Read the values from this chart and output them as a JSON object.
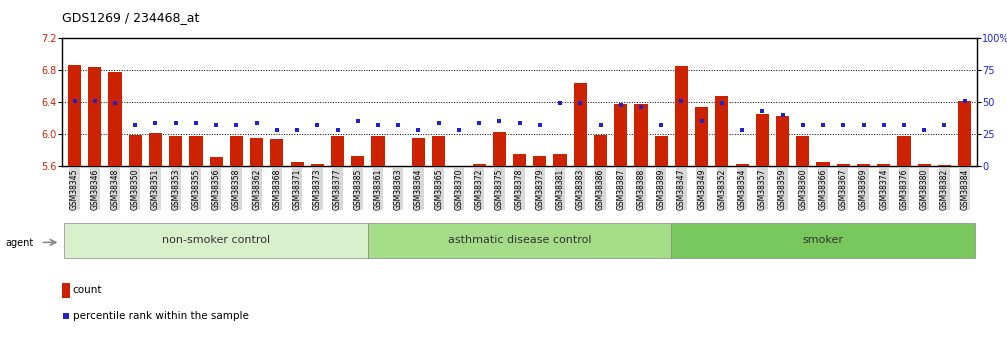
{
  "title": "GDS1269 / 234468_at",
  "ylim_left": [
    5.6,
    7.2
  ],
  "ylim_right": [
    0,
    100
  ],
  "yticks_left": [
    5.6,
    6.0,
    6.4,
    6.8,
    7.2
  ],
  "yticks_right": [
    0,
    25,
    50,
    75,
    100
  ],
  "ytick_labels_right": [
    "0",
    "25",
    "50",
    "75",
    "100%"
  ],
  "hlines": [
    6.0,
    6.4,
    6.8
  ],
  "samples": [
    "GSM38345",
    "GSM38346",
    "GSM38348",
    "GSM38350",
    "GSM38351",
    "GSM38353",
    "GSM38355",
    "GSM38356",
    "GSM38358",
    "GSM38362",
    "GSM38368",
    "GSM38371",
    "GSM38373",
    "GSM38377",
    "GSM38385",
    "GSM38361",
    "GSM38363",
    "GSM38364",
    "GSM38365",
    "GSM38370",
    "GSM38372",
    "GSM38375",
    "GSM38378",
    "GSM38379",
    "GSM38381",
    "GSM38383",
    "GSM38386",
    "GSM38387",
    "GSM38388",
    "GSM38389",
    "GSM38347",
    "GSM38349",
    "GSM38352",
    "GSM38354",
    "GSM38357",
    "GSM38359",
    "GSM38360",
    "GSM38366",
    "GSM38367",
    "GSM38369",
    "GSM38374",
    "GSM38376",
    "GSM38380",
    "GSM38382",
    "GSM38384"
  ],
  "red_values": [
    6.86,
    6.84,
    6.77,
    5.98,
    6.01,
    5.97,
    5.97,
    5.71,
    5.97,
    5.94,
    5.93,
    5.65,
    5.62,
    5.97,
    5.72,
    5.97,
    5.57,
    5.94,
    5.97,
    5.54,
    5.62,
    6.02,
    5.75,
    5.72,
    5.74,
    6.63,
    5.98,
    6.37,
    6.37,
    5.97,
    6.85,
    6.33,
    6.47,
    5.62,
    6.25,
    6.22,
    5.97,
    5.65,
    5.62,
    5.62,
    5.62,
    5.97,
    5.62,
    5.61,
    6.41
  ],
  "blue_values": [
    6.41,
    6.41,
    6.38,
    6.11,
    6.13,
    6.13,
    6.13,
    6.11,
    6.11,
    6.13,
    6.05,
    6.05,
    6.11,
    6.05,
    6.16,
    6.11,
    6.11,
    6.05,
    6.13,
    6.05,
    6.13,
    6.16,
    6.13,
    6.11,
    6.38,
    6.38,
    6.11,
    6.36,
    6.34,
    6.11,
    6.41,
    6.16,
    6.38,
    6.05,
    6.28,
    6.23,
    6.11,
    6.11,
    6.11,
    6.11,
    6.11,
    6.11,
    6.05,
    6.11,
    6.41
  ],
  "groups": [
    {
      "label": "non-smoker control",
      "start": 0,
      "end": 15,
      "color": "#d8f0cc"
    },
    {
      "label": "asthmatic disease control",
      "start": 15,
      "end": 30,
      "color": "#a4dc88"
    },
    {
      "label": "smoker",
      "start": 30,
      "end": 45,
      "color": "#78c85e"
    }
  ],
  "red_color": "#cc2200",
  "blue_color": "#2222cc",
  "bar_width": 0.65,
  "background_color": "#ffffff",
  "tick_label_size": 5.5,
  "title_fontsize": 9,
  "group_label_fontsize": 8
}
